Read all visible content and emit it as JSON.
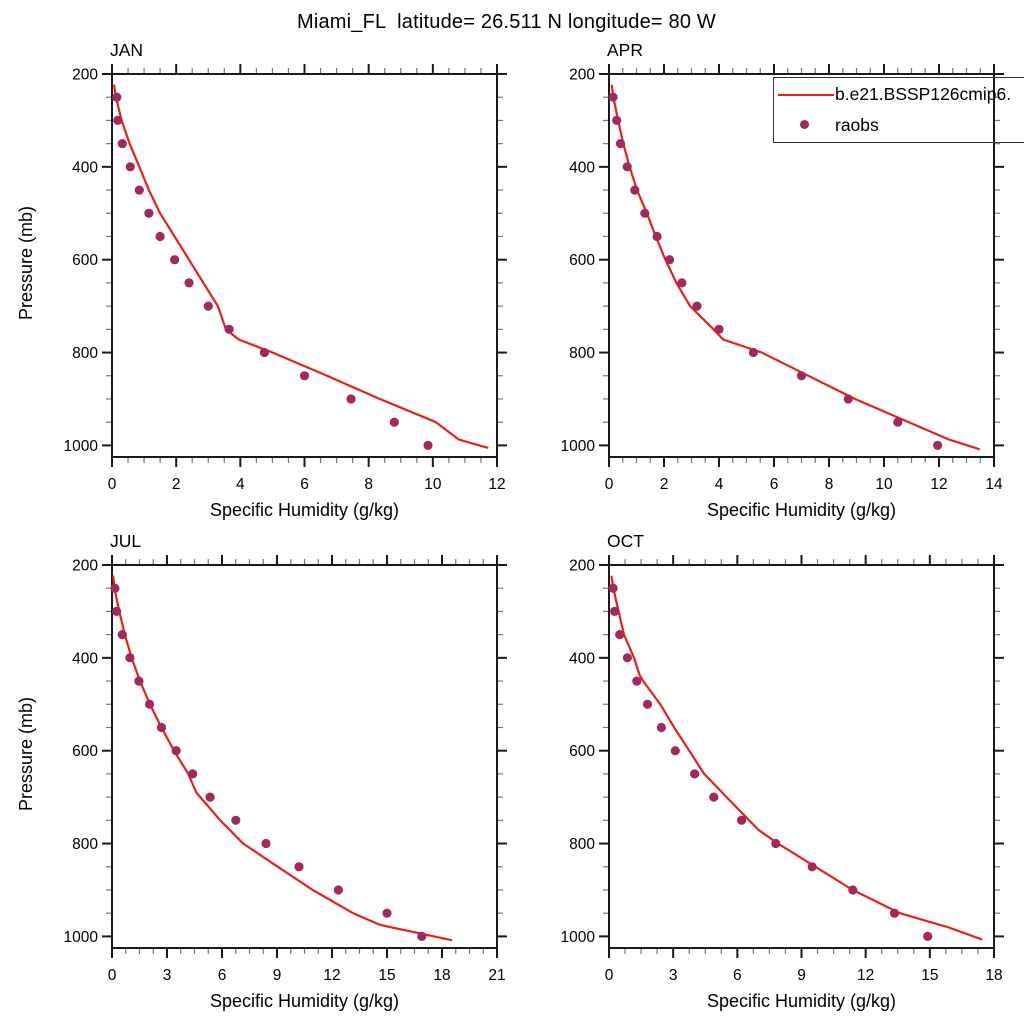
{
  "title": "Miami_FL  latitude= 26.511 N longitude= 80 W",
  "ylabel": "Pressure (mb)",
  "colors": {
    "model_line": "#e82019",
    "raobs_dot": "#a1295b",
    "axis": "#1a1a1a",
    "minor_tick": "#777777",
    "text": "#000000",
    "background": "#ffffff",
    "legend_border": "#333333"
  },
  "legend": {
    "entries": [
      {
        "type": "line",
        "label": "b.e21.BSSP126cmip6."
      },
      {
        "type": "marker",
        "label": "raobs"
      }
    ]
  },
  "chart_data": [
    {
      "type": "line",
      "id": "jan",
      "title": "JAN",
      "xlabel": "Specific Humidity (g/kg)",
      "ylabel": "Pressure (mb)",
      "xlim": [
        0,
        12
      ],
      "x_ticks": [
        0,
        2,
        4,
        6,
        8,
        10,
        12
      ],
      "x_minor_step": 0.5,
      "ylim": [
        200,
        1025
      ],
      "y_ticks": [
        200,
        400,
        600,
        800,
        1000
      ],
      "y_minor_step": 50,
      "y_axis_inverted_downward": true,
      "series": [
        {
          "name": "b.e21.BSSP126cmip6.",
          "type": "line",
          "points_p_q": [
            [
              225,
              0.07
            ],
            [
              250,
              0.12
            ],
            [
              300,
              0.3
            ],
            [
              350,
              0.55
            ],
            [
              400,
              0.85
            ],
            [
              450,
              1.15
            ],
            [
              500,
              1.5
            ],
            [
              550,
              1.95
            ],
            [
              600,
              2.4
            ],
            [
              650,
              2.85
            ],
            [
              700,
              3.3
            ],
            [
              750,
              3.55
            ],
            [
              772,
              3.95
            ],
            [
              800,
              5.0
            ],
            [
              850,
              6.7
            ],
            [
              900,
              8.35
            ],
            [
              950,
              10.1
            ],
            [
              987,
              10.8
            ],
            [
              1005,
              11.7
            ]
          ]
        },
        {
          "name": "raobs",
          "type": "scatter",
          "points_p_q": [
            [
              250,
              0.15
            ],
            [
              300,
              0.18
            ],
            [
              350,
              0.32
            ],
            [
              400,
              0.57
            ],
            [
              450,
              0.85
            ],
            [
              500,
              1.15
            ],
            [
              550,
              1.5
            ],
            [
              600,
              1.95
            ],
            [
              650,
              2.4
            ],
            [
              700,
              3.0
            ],
            [
              750,
              3.65
            ],
            [
              800,
              4.75
            ],
            [
              850,
              6.0
            ],
            [
              900,
              7.45
            ],
            [
              950,
              8.8
            ],
            [
              1000,
              9.85
            ]
          ]
        }
      ]
    },
    {
      "type": "line",
      "id": "apr",
      "title": "APR",
      "xlabel": "Specific Humidity (g/kg)",
      "ylabel": "Pressure (mb)",
      "xlim": [
        0,
        14
      ],
      "x_ticks": [
        0,
        2,
        4,
        6,
        8,
        10,
        12,
        14
      ],
      "x_minor_step": 0.5,
      "ylim": [
        200,
        1025
      ],
      "y_ticks": [
        200,
        400,
        600,
        800,
        1000
      ],
      "y_minor_step": 50,
      "y_axis_inverted_downward": true,
      "series": [
        {
          "name": "b.e21.BSSP126cmip6.",
          "type": "line",
          "points_p_q": [
            [
              225,
              0.1
            ],
            [
              250,
              0.16
            ],
            [
              300,
              0.33
            ],
            [
              350,
              0.52
            ],
            [
              400,
              0.75
            ],
            [
              450,
              1.02
            ],
            [
              500,
              1.38
            ],
            [
              550,
              1.7
            ],
            [
              600,
              2.05
            ],
            [
              650,
              2.45
            ],
            [
              700,
              2.95
            ],
            [
              750,
              3.8
            ],
            [
              772,
              4.15
            ],
            [
              800,
              5.55
            ],
            [
              850,
              7.25
            ],
            [
              900,
              8.95
            ],
            [
              950,
              10.9
            ],
            [
              987,
              12.35
            ],
            [
              1008,
              13.45
            ]
          ]
        },
        {
          "name": "raobs",
          "type": "scatter",
          "points_p_q": [
            [
              250,
              0.15
            ],
            [
              300,
              0.28
            ],
            [
              350,
              0.42
            ],
            [
              400,
              0.66
            ],
            [
              450,
              0.94
            ],
            [
              500,
              1.3
            ],
            [
              550,
              1.75
            ],
            [
              600,
              2.2
            ],
            [
              650,
              2.65
            ],
            [
              700,
              3.2
            ],
            [
              750,
              4.0
            ],
            [
              800,
              5.25
            ],
            [
              850,
              7.0
            ],
            [
              900,
              8.7
            ],
            [
              950,
              10.5
            ],
            [
              1000,
              11.95
            ]
          ]
        }
      ]
    },
    {
      "type": "line",
      "id": "jul",
      "title": "JUL",
      "xlabel": "Specific Humidity (g/kg)",
      "ylabel": "Pressure (mb)",
      "xlim": [
        0,
        21
      ],
      "x_ticks": [
        0,
        3,
        6,
        9,
        12,
        15,
        18,
        21
      ],
      "x_minor_step": 0.75,
      "ylim": [
        200,
        1025
      ],
      "y_ticks": [
        200,
        400,
        600,
        800,
        1000
      ],
      "y_minor_step": 50,
      "y_axis_inverted_downward": true,
      "series": [
        {
          "name": "b.e21.BSSP126cmip6.",
          "type": "line",
          "points_p_q": [
            [
              225,
              0.07
            ],
            [
              250,
              0.13
            ],
            [
              300,
              0.4
            ],
            [
              350,
              0.7
            ],
            [
              400,
              1.07
            ],
            [
              450,
              1.53
            ],
            [
              500,
              2.07
            ],
            [
              550,
              2.7
            ],
            [
              600,
              3.38
            ],
            [
              650,
              4.16
            ],
            [
              690,
              4.6
            ],
            [
              750,
              5.9
            ],
            [
              800,
              7.15
            ],
            [
              850,
              9.05
            ],
            [
              900,
              10.95
            ],
            [
              950,
              13.15
            ],
            [
              975,
              14.6
            ],
            [
              993,
              16.7
            ],
            [
              1008,
              18.5
            ]
          ]
        },
        {
          "name": "raobs",
          "type": "scatter",
          "points_p_q": [
            [
              250,
              0.16
            ],
            [
              300,
              0.25
            ],
            [
              350,
              0.56
            ],
            [
              400,
              0.98
            ],
            [
              450,
              1.47
            ],
            [
              500,
              2.05
            ],
            [
              550,
              2.7
            ],
            [
              600,
              3.5
            ],
            [
              650,
              4.4
            ],
            [
              700,
              5.35
            ],
            [
              750,
              6.75
            ],
            [
              800,
              8.4
            ],
            [
              850,
              10.2
            ],
            [
              900,
              12.35
            ],
            [
              950,
              15.0
            ],
            [
              1000,
              16.9
            ]
          ]
        }
      ]
    },
    {
      "type": "line",
      "id": "oct",
      "title": "OCT",
      "xlabel": "Specific Humidity (g/kg)",
      "ylabel": "Pressure (mb)",
      "xlim": [
        0,
        18
      ],
      "x_ticks": [
        0,
        3,
        6,
        9,
        12,
        15,
        18
      ],
      "x_minor_step": 0.75,
      "ylim": [
        200,
        1025
      ],
      "y_ticks": [
        200,
        400,
        600,
        800,
        1000
      ],
      "y_minor_step": 50,
      "y_axis_inverted_downward": true,
      "series": [
        {
          "name": "b.e21.BSSP126cmip6.",
          "type": "line",
          "points_p_q": [
            [
              225,
              0.12
            ],
            [
              250,
              0.2
            ],
            [
              300,
              0.45
            ],
            [
              350,
              0.7
            ],
            [
              400,
              1.17
            ],
            [
              437,
              1.43
            ],
            [
              450,
              1.6
            ],
            [
              500,
              2.4
            ],
            [
              550,
              3.05
            ],
            [
              600,
              3.75
            ],
            [
              650,
              4.45
            ],
            [
              700,
              5.5
            ],
            [
              750,
              6.55
            ],
            [
              771,
              7.0
            ],
            [
              800,
              7.9
            ],
            [
              850,
              9.65
            ],
            [
              900,
              11.4
            ],
            [
              950,
              13.6
            ],
            [
              981,
              15.9
            ],
            [
              1006,
              17.4
            ]
          ]
        },
        {
          "name": "raobs",
          "type": "scatter",
          "points_p_q": [
            [
              250,
              0.19
            ],
            [
              300,
              0.26
            ],
            [
              350,
              0.5
            ],
            [
              400,
              0.86
            ],
            [
              450,
              1.3
            ],
            [
              500,
              1.8
            ],
            [
              550,
              2.45
            ],
            [
              600,
              3.1
            ],
            [
              650,
              4.0
            ],
            [
              700,
              4.9
            ],
            [
              750,
              6.2
            ],
            [
              800,
              7.8
            ],
            [
              850,
              9.5
            ],
            [
              900,
              11.4
            ],
            [
              950,
              13.35
            ],
            [
              1000,
              14.9
            ]
          ]
        }
      ]
    }
  ]
}
